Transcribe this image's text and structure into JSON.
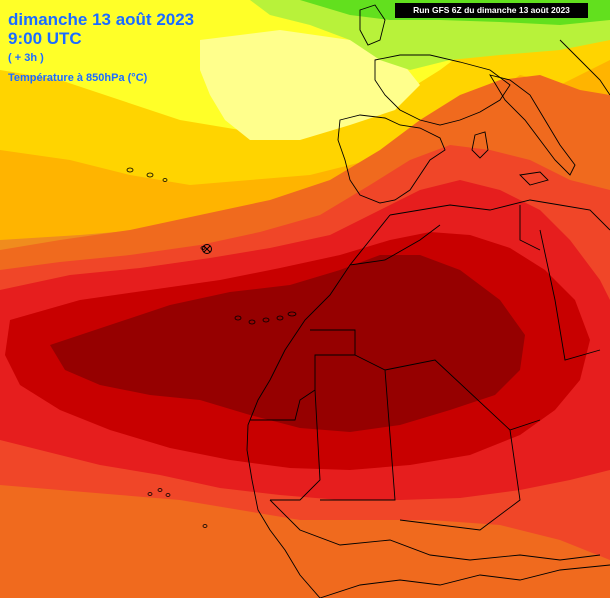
{
  "header": {
    "date_line": "dimanche 13 août 2023",
    "time_line": "9:00 UTC",
    "offset_line": "( + 3h )",
    "variable_line": "Température à 850hPa (°C)"
  },
  "run_label": "Run GFS 6Z du dimanche 13 août 2023",
  "colors": {
    "green": "#62e01e",
    "yellow_green": "#b8f23a",
    "yellow": "#ffff28",
    "pale_yellow": "#ffff8c",
    "gold": "#ffd400",
    "light_orange": "#ffb400",
    "orange": "#f08c1e",
    "deep_orange": "#f06a1e",
    "red_orange": "#f04628",
    "red": "#e61e1e",
    "dark_red": "#c80000",
    "maroon": "#960000",
    "title_blue": "#1a6cff",
    "border_black": "#000000"
  },
  "icons": {
    "marker": "circled-x-marker-icon"
  }
}
